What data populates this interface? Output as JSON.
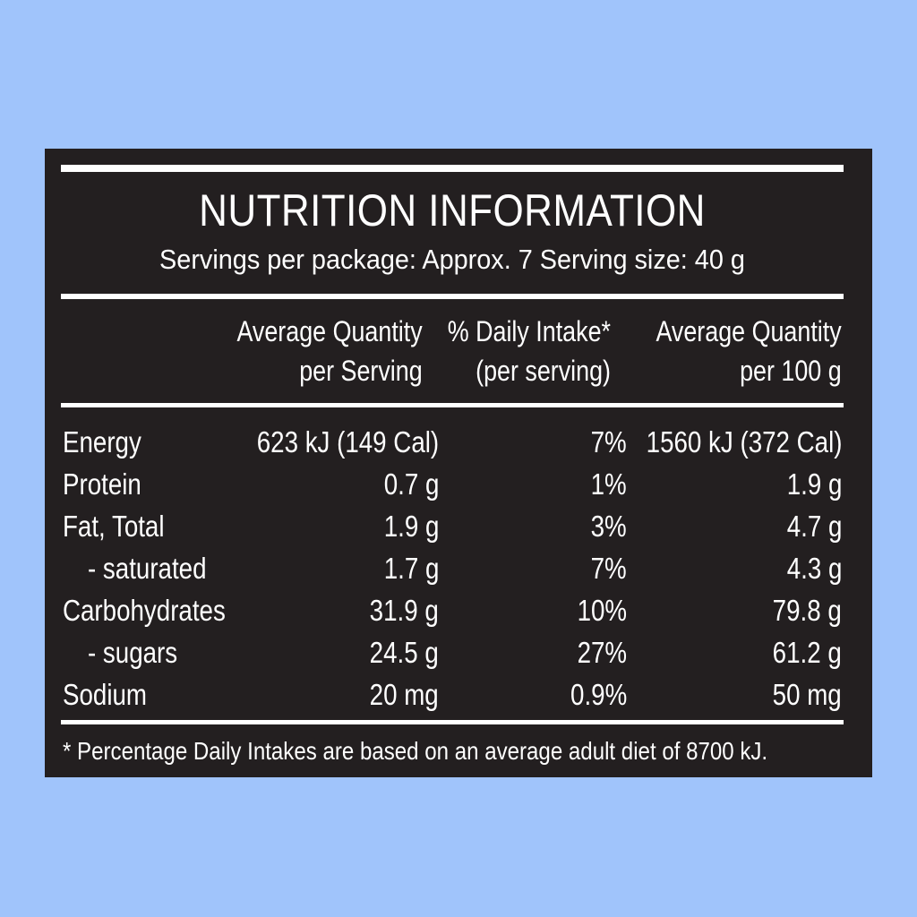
{
  "label": {
    "title": "NUTRITION INFORMATION",
    "subtitle": "Servings per package: Approx. 7  Serving size: 40 g",
    "columns": [
      {
        "line1": "Average Quantity",
        "line2": "per Serving"
      },
      {
        "line1": "% Daily Intake*",
        "line2": "(per serving)"
      },
      {
        "line1": "Average Quantity",
        "line2": "per 100 g"
      }
    ],
    "rows": [
      {
        "name": "Energy",
        "serving": "623 kJ (149 Cal)",
        "daily": "7%",
        "per100": "1560 kJ (372 Cal)"
      },
      {
        "name": "Protein",
        "serving": "0.7 g",
        "daily": "1%",
        "per100": "1.9 g"
      },
      {
        "name": "Fat, Total",
        "serving": "1.9 g",
        "daily": "3%",
        "per100": "4.7 g"
      },
      {
        "name": "- saturated",
        "serving": "1.7 g",
        "daily": "7%",
        "per100": "4.3 g"
      },
      {
        "name": "Carbohydrates",
        "serving": "31.9 g",
        "daily": "10%",
        "per100": "79.8 g"
      },
      {
        "name": "- sugars",
        "serving": "24.5 g",
        "daily": "27%",
        "per100": "61.2 g"
      },
      {
        "name": "Sodium",
        "serving": "20 mg",
        "daily": "0.9%",
        "per100": "50 mg"
      }
    ],
    "footnote": "* Percentage Daily Intakes are based on an average adult diet of 8700 kJ."
  },
  "colors": {
    "background": "#a0c4fb",
    "panel": "#231f20",
    "text": "#ffffff"
  }
}
